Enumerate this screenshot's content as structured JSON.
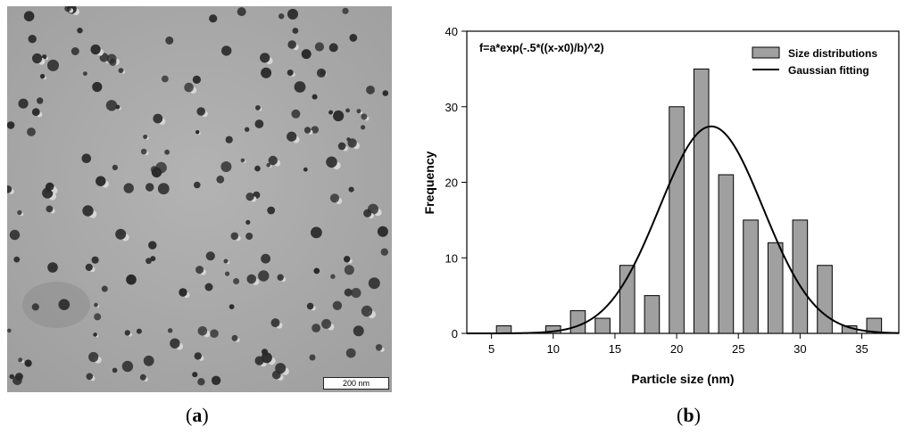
{
  "panel_a": {
    "label_open": "(",
    "label_letter": "a",
    "label_close": ")",
    "scale_bar_text": "200 nm",
    "background_color": "#a9a9a9",
    "particle_color": "#2a2a2a"
  },
  "panel_b": {
    "label_open": "(",
    "label_letter": "b",
    "label_close": ")"
  },
  "chart_data": {
    "type": "bar",
    "formula": "f=a*exp(-.5*((x-x0)/b)^2)",
    "xlabel": "Particle size (nm)",
    "ylabel": "Frequency",
    "xlim": [
      3,
      38
    ],
    "ylim": [
      0,
      40
    ],
    "xticks": [
      5,
      10,
      15,
      20,
      25,
      30,
      35
    ],
    "yticks": [
      0,
      10,
      20,
      30,
      40
    ],
    "bar_color": "#a0a0a0",
    "legend_position": "top-right",
    "series": [
      {
        "name": "Size distributions",
        "type": "bar",
        "x": [
          6,
          10,
          12,
          14,
          16,
          18,
          20,
          22,
          24,
          26,
          28,
          30,
          32,
          34,
          36
        ],
        "values": [
          1,
          1,
          3,
          2,
          9,
          5,
          30,
          35,
          21,
          15,
          12,
          15,
          9,
          1,
          2
        ]
      },
      {
        "name": "Gaussian fitting",
        "type": "line",
        "a": 27.4,
        "x0": 22.8,
        "b": 4.2
      }
    ]
  }
}
